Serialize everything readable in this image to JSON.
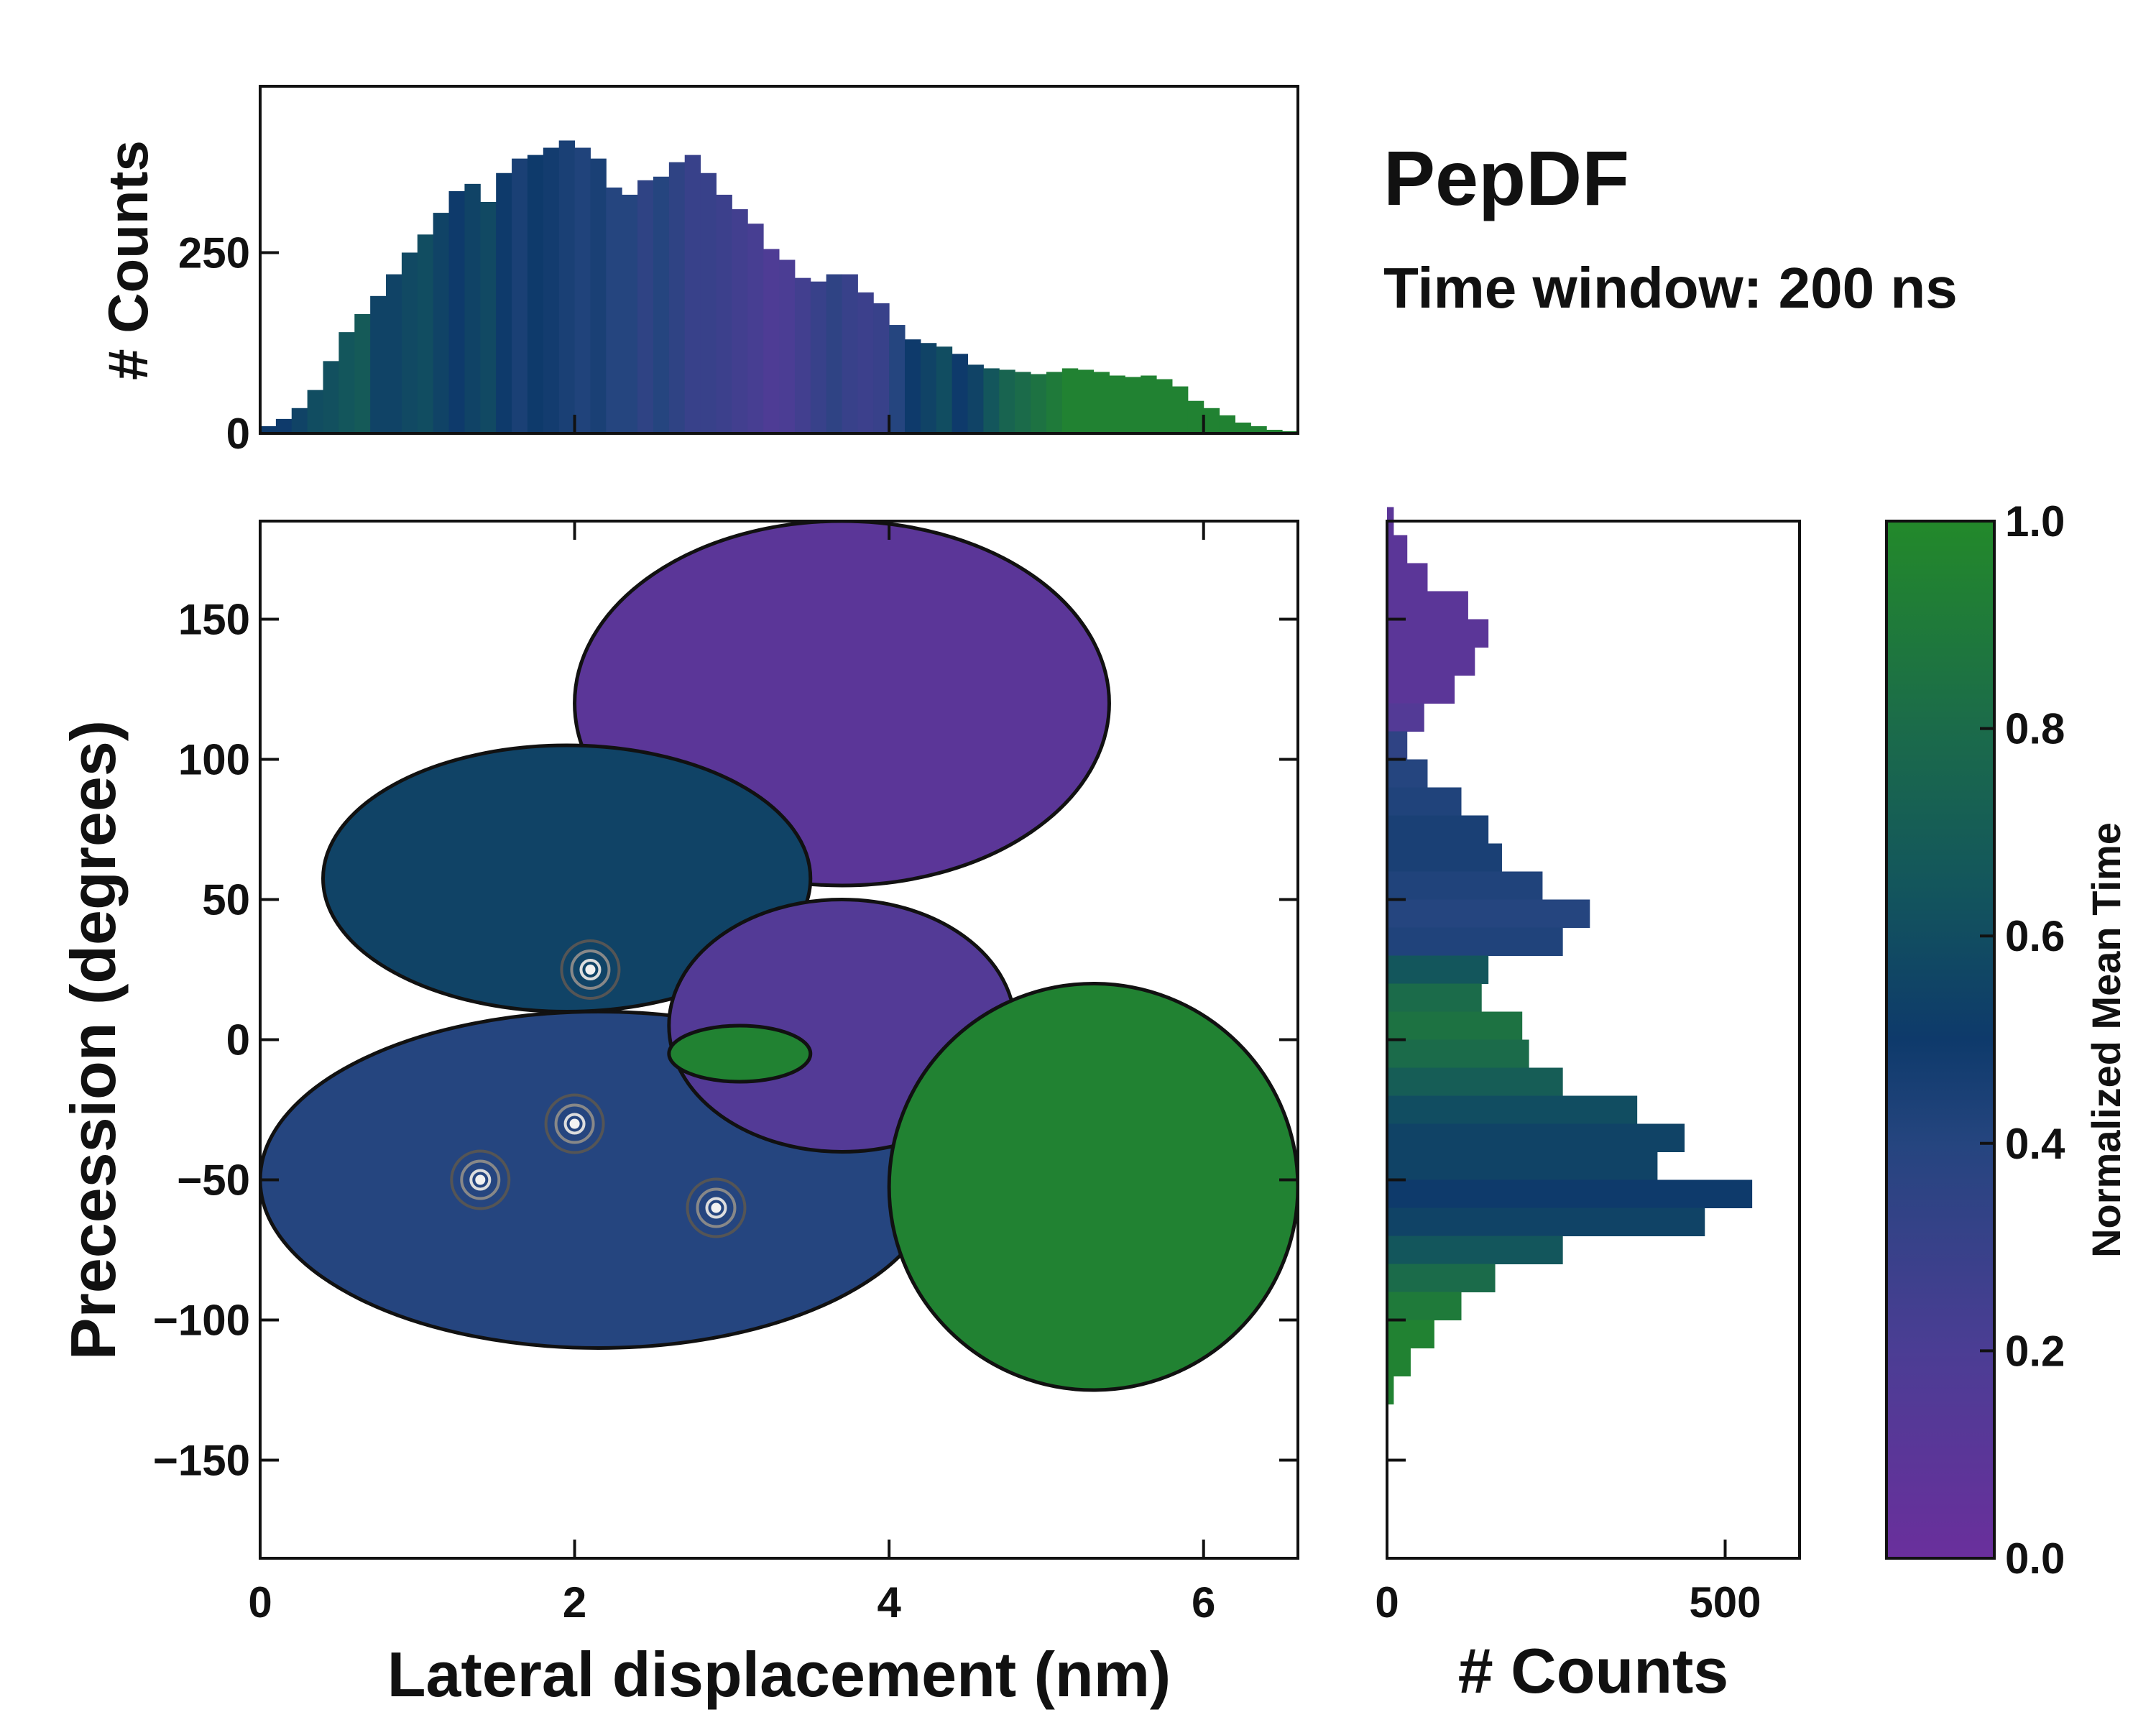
{
  "chart_data": [
    {
      "type": "heatmap",
      "name": "main-2d-map",
      "title": "PepDF",
      "subtitle": "Time window: 200 ns",
      "xlabel": "Lateral displacement (nm)",
      "ylabel": "Precession (degrees)",
      "xlim": [
        0,
        6.6
      ],
      "ylim": [
        -185,
        185
      ],
      "xticks": [
        0,
        2,
        4,
        6
      ],
      "xtick_labels": [
        "0",
        "2",
        "4",
        "6"
      ],
      "yticks": [
        -150,
        -100,
        -50,
        0,
        50,
        100,
        150
      ],
      "ytick_labels": [
        "−150",
        "−100",
        "−50",
        "0",
        "50",
        "100",
        "150"
      ],
      "colorbar_label": "Normalized Mean Time",
      "regions": [
        {
          "name": "upper-lobe",
          "x": [
            2.0,
            5.4
          ],
          "y": [
            55,
            185
          ],
          "mean_time": 0.1
        },
        {
          "name": "central-dense-cluster",
          "x": [
            0.4,
            3.5
          ],
          "y": [
            10,
            105
          ],
          "mean_time": 0.55
        },
        {
          "name": "lower-dense-cluster",
          "x": [
            0.0,
            4.3
          ],
          "y": [
            -110,
            10
          ],
          "mean_time": 0.4
        },
        {
          "name": "mid-band",
          "x": [
            2.6,
            4.8
          ],
          "y": [
            -40,
            50
          ],
          "mean_time": 0.15
        },
        {
          "name": "green-right-lobe",
          "x": [
            4.0,
            6.6
          ],
          "y": [
            -125,
            20
          ],
          "mean_time": 0.95
        },
        {
          "name": "green-center-patch",
          "x": [
            2.6,
            3.5
          ],
          "y": [
            -15,
            5
          ],
          "mean_time": 0.95
        }
      ],
      "density_peaks": [
        {
          "x": 2.1,
          "y": 25
        },
        {
          "x": 1.4,
          "y": -50
        },
        {
          "x": 2.0,
          "y": -30
        },
        {
          "x": 2.9,
          "y": -60
        }
      ]
    },
    {
      "type": "bar",
      "name": "top-marginal-histogram",
      "xlabel": "",
      "ylabel": "# Counts",
      "xlim": [
        0,
        6.6
      ],
      "ylim": [
        0,
        480
      ],
      "yticks": [
        0,
        250
      ],
      "ytick_labels": [
        "0",
        "250"
      ],
      "x": [
        0.05,
        0.15,
        0.25,
        0.35,
        0.45,
        0.55,
        0.65,
        0.75,
        0.85,
        0.95,
        1.05,
        1.15,
        1.25,
        1.35,
        1.45,
        1.55,
        1.65,
        1.75,
        1.85,
        1.95,
        2.05,
        2.15,
        2.25,
        2.35,
        2.45,
        2.55,
        2.65,
        2.75,
        2.85,
        2.95,
        3.05,
        3.15,
        3.25,
        3.35,
        3.45,
        3.55,
        3.65,
        3.75,
        3.85,
        3.95,
        4.05,
        4.15,
        4.25,
        4.35,
        4.45,
        4.55,
        4.65,
        4.75,
        4.85,
        4.95,
        5.05,
        5.15,
        5.25,
        5.35,
        5.45,
        5.55,
        5.65,
        5.75,
        5.85,
        5.95,
        6.05,
        6.15,
        6.25,
        6.35,
        6.45,
        6.55
      ],
      "values": [
        10,
        20,
        35,
        60,
        100,
        140,
        165,
        190,
        220,
        250,
        275,
        305,
        335,
        345,
        320,
        360,
        380,
        385,
        395,
        405,
        395,
        380,
        340,
        330,
        350,
        355,
        375,
        385,
        360,
        330,
        310,
        290,
        255,
        240,
        215,
        210,
        220,
        220,
        195,
        180,
        150,
        130,
        125,
        120,
        110,
        95,
        90,
        88,
        85,
        82,
        85,
        90,
        88,
        85,
        80,
        78,
        80,
        75,
        65,
        45,
        35,
        25,
        15,
        10,
        5,
        3
      ],
      "mean_time": [
        0.5,
        0.5,
        0.55,
        0.6,
        0.62,
        0.65,
        0.68,
        0.55,
        0.55,
        0.58,
        0.6,
        0.55,
        0.5,
        0.55,
        0.58,
        0.5,
        0.45,
        0.5,
        0.48,
        0.45,
        0.42,
        0.45,
        0.4,
        0.4,
        0.35,
        0.4,
        0.35,
        0.3,
        0.3,
        0.28,
        0.25,
        0.22,
        0.18,
        0.2,
        0.25,
        0.3,
        0.35,
        0.3,
        0.28,
        0.3,
        0.4,
        0.5,
        0.55,
        0.6,
        0.5,
        0.55,
        0.65,
        0.75,
        0.8,
        0.85,
        0.9,
        0.95,
        0.95,
        0.95,
        0.95,
        0.95,
        0.95,
        0.95,
        0.95,
        0.95,
        0.95,
        0.95,
        0.95,
        0.95,
        0.95,
        0.95
      ]
    },
    {
      "type": "bar",
      "name": "right-marginal-histogram",
      "orientation": "horizontal",
      "xlabel": "# Counts",
      "ylabel": "",
      "xlim": [
        0,
        610
      ],
      "ylim": [
        -185,
        185
      ],
      "xticks": [
        0,
        500
      ],
      "xtick_labels": [
        "0",
        "500"
      ],
      "y": [
        185,
        175,
        165,
        155,
        145,
        135,
        125,
        115,
        105,
        95,
        85,
        75,
        65,
        55,
        45,
        35,
        25,
        15,
        5,
        -5,
        -15,
        -25,
        -35,
        -45,
        -55,
        -65,
        -75,
        -85,
        -95,
        -105,
        -115,
        -125
      ],
      "values": [
        10,
        30,
        60,
        120,
        150,
        130,
        100,
        55,
        30,
        60,
        110,
        150,
        170,
        230,
        300,
        260,
        150,
        140,
        200,
        210,
        260,
        370,
        440,
        400,
        540,
        470,
        260,
        160,
        110,
        70,
        35,
        10
      ],
      "mean_time": [
        0.1,
        0.1,
        0.1,
        0.1,
        0.1,
        0.1,
        0.1,
        0.15,
        0.35,
        0.4,
        0.42,
        0.45,
        0.45,
        0.42,
        0.4,
        0.42,
        0.65,
        0.8,
        0.85,
        0.8,
        0.7,
        0.6,
        0.55,
        0.55,
        0.5,
        0.55,
        0.65,
        0.8,
        0.9,
        0.95,
        0.95,
        0.95
      ]
    },
    {
      "type": "colorbar",
      "name": "time-colorbar",
      "label": "Normalized Mean Time",
      "ticks": [
        0.0,
        0.2,
        0.4,
        0.6,
        0.8,
        1.0
      ],
      "tick_labels": [
        "0.0",
        "0.2",
        "0.4",
        "0.6",
        "0.8",
        "1.0"
      ],
      "stops": [
        {
          "value": 0.0,
          "color": "#6a2f9c"
        },
        {
          "value": 0.2,
          "color": "#4b3d94"
        },
        {
          "value": 0.4,
          "color": "#25457f"
        },
        {
          "value": 0.5,
          "color": "#0e3a6b"
        },
        {
          "value": 0.65,
          "color": "#13565c"
        },
        {
          "value": 0.8,
          "color": "#1b6b4a"
        },
        {
          "value": 1.0,
          "color": "#23892a"
        }
      ]
    }
  ]
}
